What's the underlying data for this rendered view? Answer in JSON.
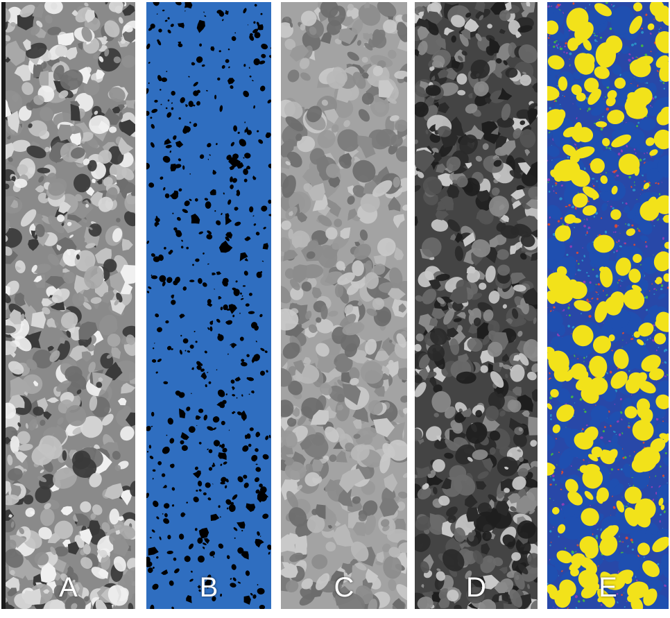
{
  "panels": [
    {
      "id": "A",
      "label": "A",
      "style": "grayscale-bright",
      "base": "#8a8a8a",
      "palette": [
        "#d8d8d8",
        "#c2c2c2",
        "#a8a8a8",
        "#f0f0f0",
        "#6e6e6e",
        "#3a3a3a",
        "#909090"
      ]
    },
    {
      "id": "B",
      "label": "B",
      "style": "pore-mask",
      "base": "#2f6ec0",
      "palette": [
        "#000000"
      ]
    },
    {
      "id": "C",
      "label": "C",
      "style": "grayscale-soft",
      "base": "#a3a3a3",
      "palette": [
        "#8c8c8c",
        "#7a7a7a",
        "#b8b8b8",
        "#c9c9c9",
        "#6c6c6c",
        "#999999"
      ]
    },
    {
      "id": "D",
      "label": "D",
      "style": "grayscale-dark",
      "base": "#444444",
      "palette": [
        "#1e1e1e",
        "#2a2a2a",
        "#6a6a6a",
        "#8a8a8a",
        "#c8c8c8",
        "#555555"
      ]
    },
    {
      "id": "E",
      "label": "E",
      "style": "segmentation",
      "base": "#2848a8",
      "palette": [
        "#f2e21a",
        "#1f4fb0",
        "#43b04a",
        "#d24a3a",
        "#8a3fb5",
        "#2a8fc7"
      ]
    }
  ]
}
